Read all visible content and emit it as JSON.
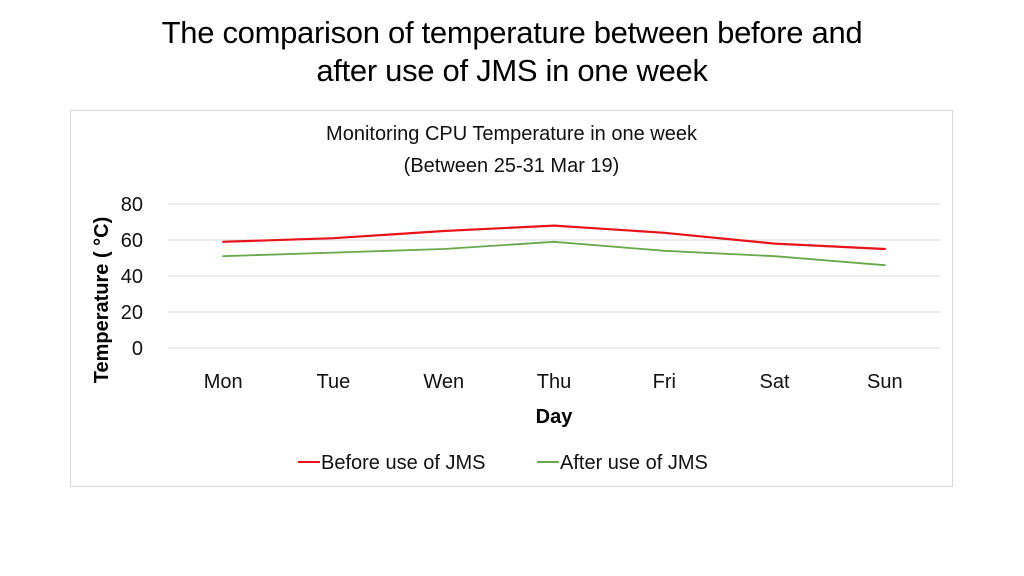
{
  "slide": {
    "title_line1": "The comparison of temperature between before and",
    "title_line2": "after use of JMS in one week"
  },
  "colors": {
    "before": "#e8141b",
    "after": "#6aa84f",
    "grid": "#d9d9d9",
    "frame": "#d9d9d9"
  },
  "chart_data": {
    "type": "line",
    "title": "Monitoring CPU Temperature in one week",
    "subtitle": "(Between 25-31 Mar 19)",
    "xlabel": "Day",
    "ylabel": "Temperature ( °C)",
    "categories": [
      "Mon",
      "Tue",
      "Wen",
      "Thu",
      "Fri",
      "Sat",
      "Sun"
    ],
    "yticks": [
      "80",
      "60",
      "40",
      "20",
      "0"
    ],
    "ylim": [
      0,
      80
    ],
    "grid": true,
    "legend_position": "bottom",
    "series": [
      {
        "name": "Before use of JMS",
        "color": "#e8141b",
        "values": [
          59,
          61,
          65,
          68,
          64,
          58,
          55
        ]
      },
      {
        "name": "After use of JMS",
        "color": "#6aa84f",
        "values": [
          51,
          53,
          55,
          59,
          54,
          51,
          46
        ]
      }
    ]
  }
}
